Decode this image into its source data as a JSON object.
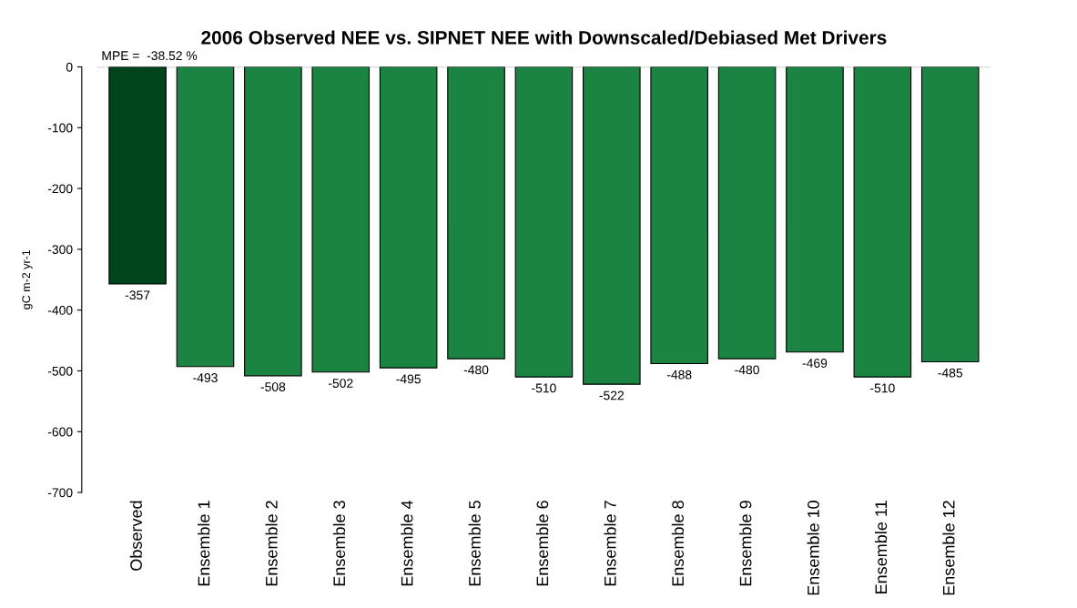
{
  "chart_data": {
    "type": "bar",
    "title": "2006 Observed NEE vs. SIPNET NEE with Downscaled/Debiased Met Drivers",
    "ylabel": "gC m-2 yr-1",
    "categories": [
      "Observed",
      "Ensemble 1",
      "Ensemble 2",
      "Ensemble 3",
      "Ensemble 4",
      "Ensemble 5",
      "Ensemble 6",
      "Ensemble 7",
      "Ensemble 8",
      "Ensemble 9",
      "Ensemble 10",
      "Ensemble 11",
      "Ensemble 12"
    ],
    "values": [
      -357,
      -493,
      -508,
      -502,
      -495,
      -480,
      -510,
      -522,
      -488,
      -480,
      -469,
      -510,
      -485
    ],
    "colors": [
      "#00441b",
      "#1b8443",
      "#1b8443",
      "#1b8443",
      "#1b8443",
      "#1b8443",
      "#1b8443",
      "#1b8443",
      "#1b8443",
      "#1b8443",
      "#1b8443",
      "#1b8443",
      "#1b8443"
    ],
    "data_labels": true,
    "annotations": [
      "MPE =  -38.52 %"
    ],
    "ref_lines": [
      {
        "axis": "y",
        "value": 0,
        "color": "#bebebe"
      }
    ],
    "ylim": [
      -700,
      0
    ],
    "yticks": [
      0,
      -100,
      -200,
      -300,
      -400,
      -500,
      -600,
      -700
    ],
    "grid": false,
    "legend": false
  }
}
